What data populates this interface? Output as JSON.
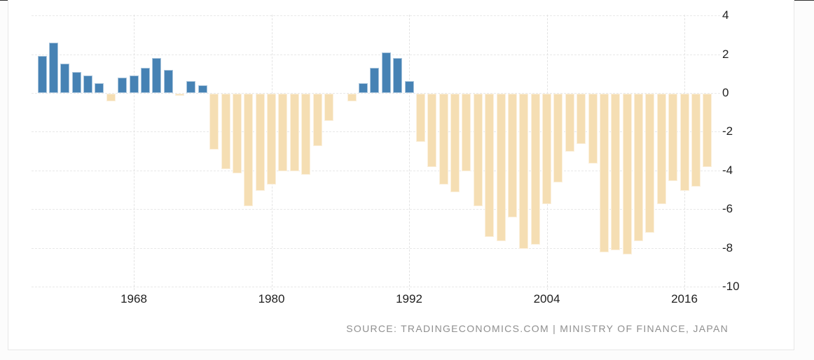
{
  "chart_data": {
    "type": "bar",
    "title": "",
    "x": [
      1960,
      1961,
      1962,
      1963,
      1964,
      1965,
      1966,
      1967,
      1968,
      1969,
      1970,
      1971,
      1972,
      1973,
      1974,
      1975,
      1976,
      1977,
      1978,
      1979,
      1980,
      1981,
      1982,
      1983,
      1984,
      1985,
      1986,
      1987,
      1988,
      1989,
      1990,
      1991,
      1992,
      1993,
      1994,
      1995,
      1996,
      1997,
      1998,
      1999,
      2000,
      2001,
      2002,
      2003,
      2004,
      2005,
      2006,
      2007,
      2008,
      2009,
      2010,
      2011,
      2012,
      2013,
      2014,
      2015,
      2016,
      2017,
      2018
    ],
    "values": [
      1.9,
      2.6,
      1.5,
      1.1,
      0.9,
      0.5,
      -0.4,
      0.8,
      0.9,
      1.3,
      1.8,
      1.2,
      -0.1,
      0.6,
      0.4,
      -2.9,
      -3.9,
      -4.1,
      -5.8,
      -5.0,
      -4.7,
      -4.0,
      -4.0,
      -4.2,
      -2.7,
      -1.4,
      0,
      -0.4,
      0.5,
      1.3,
      2.1,
      1.8,
      0.6,
      -2.5,
      -3.8,
      -4.7,
      -5.1,
      -4.0,
      -5.8,
      -7.4,
      -7.6,
      -6.4,
      -8.0,
      -7.8,
      -5.7,
      -4.6,
      -3.0,
      -2.6,
      -3.6,
      -8.2,
      -8.1,
      -8.3,
      -7.6,
      -7.2,
      -5.7,
      -4.5,
      -5.0,
      -4.8,
      -3.8
    ],
    "xlabel": "",
    "ylabel": "",
    "ylim": [
      -10,
      4
    ],
    "yticks": [
      4,
      2,
      0,
      -2,
      -4,
      -6,
      -8,
      -10
    ],
    "xticks": [
      1968,
      1980,
      1992,
      2004,
      2016
    ],
    "grid": true,
    "legend": "none",
    "colors": {
      "positive_bar": "#4682b4",
      "negative_bar": "#f5deb3",
      "gridline": "#e8e8e8",
      "axis_text": "#1f1f1f",
      "source_text": "#8f8f8f"
    },
    "source": "SOURCE: TRADINGECONOMICS.COM | MINISTRY OF FINANCE, JAPAN"
  }
}
